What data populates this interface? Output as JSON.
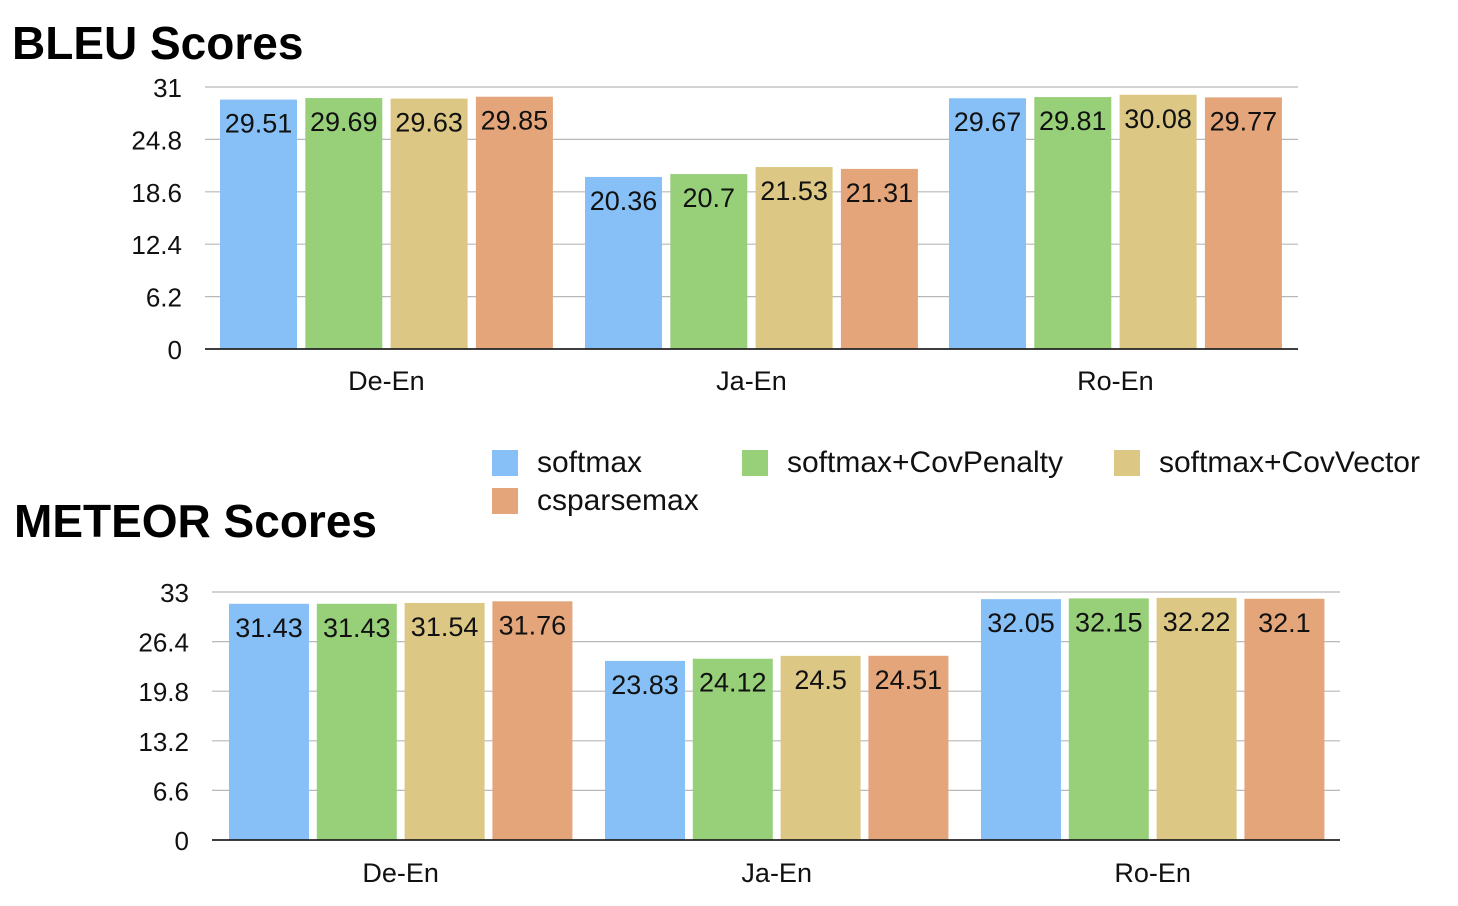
{
  "legend": [
    {
      "label": "softmax",
      "color": "#86c0f7"
    },
    {
      "label": "softmax+CovPenalty",
      "color": "#98d07a"
    },
    {
      "label": "softmax+CovVector",
      "color": "#dcc784"
    },
    {
      "label": "csparsemax",
      "color": "#e4a57a"
    }
  ],
  "chart_data": [
    {
      "type": "bar",
      "title": "BLEU Scores",
      "categories": [
        "De-En",
        "Ja-En",
        "Ro-En"
      ],
      "ylim": [
        0,
        31
      ],
      "yticks": [
        "0",
        "6.2",
        "12.4",
        "18.6",
        "24.8",
        "31"
      ],
      "grid": true,
      "series": [
        {
          "name": "softmax",
          "values": [
            29.51,
            20.36,
            29.67
          ],
          "labels": [
            "29.51",
            "20.36",
            "29.67"
          ]
        },
        {
          "name": "softmax+CovPenalty",
          "values": [
            29.69,
            20.7,
            29.81
          ],
          "labels": [
            "29.69",
            "20.7",
            "29.81"
          ]
        },
        {
          "name": "softmax+CovVector",
          "values": [
            29.63,
            21.53,
            30.08
          ],
          "labels": [
            "29.63",
            "21.53",
            "30.08"
          ]
        },
        {
          "name": "csparsemax",
          "values": [
            29.85,
            21.31,
            29.77
          ],
          "labels": [
            "29.85",
            "21.31",
            "29.77"
          ]
        }
      ]
    },
    {
      "type": "bar",
      "title": "METEOR Scores",
      "categories": [
        "De-En",
        "Ja-En",
        "Ro-En"
      ],
      "ylim": [
        0,
        33
      ],
      "yticks": [
        "0",
        "6.6",
        "13.2",
        "19.8",
        "26.4",
        "33"
      ],
      "grid": true,
      "series": [
        {
          "name": "softmax",
          "values": [
            31.43,
            23.83,
            32.05
          ],
          "labels": [
            "31.43",
            "23.83",
            "32.05"
          ]
        },
        {
          "name": "softmax+CovPenalty",
          "values": [
            31.43,
            24.12,
            32.15
          ],
          "labels": [
            "31.43",
            "24.12",
            "32.15"
          ]
        },
        {
          "name": "softmax+CovVector",
          "values": [
            31.54,
            24.5,
            32.22
          ],
          "labels": [
            "31.54",
            "24.5",
            "32.22"
          ]
        },
        {
          "name": "csparsemax",
          "values": [
            31.76,
            24.51,
            32.1
          ],
          "labels": [
            "31.76",
            "24.51",
            "32.1"
          ]
        }
      ]
    }
  ]
}
